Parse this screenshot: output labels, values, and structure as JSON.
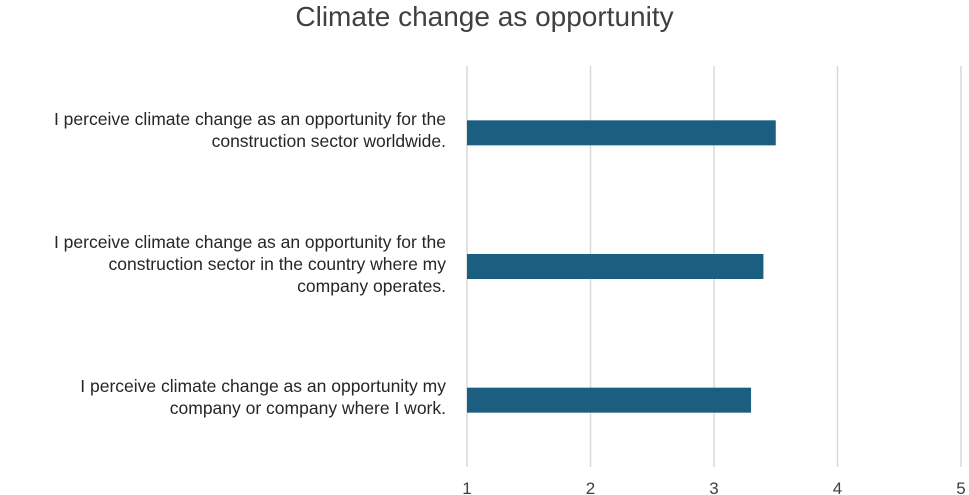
{
  "chart_data": {
    "type": "bar",
    "orientation": "horizontal",
    "title": "Climate change as opportunity",
    "xlabel": "",
    "ylabel": "",
    "categories": [
      "I perceive climate change as an opportunity for the construction sector worldwide.",
      "I perceive climate change as an opportunity for the construction sector in the country where my company operates.",
      "I perceive climate change as an opportunity my company or company where I work."
    ],
    "category_lines": [
      [
        "I perceive climate change as an opportunity for the",
        "construction sector worldwide."
      ],
      [
        "I perceive climate change as an opportunity for the",
        "construction sector in the country where my",
        "company operates."
      ],
      [
        "I perceive climate change as an opportunity my",
        "company or company where I work."
      ]
    ],
    "values": [
      3.5,
      3.4,
      3.3
    ],
    "xlim": [
      1,
      5
    ],
    "xticks": [
      1,
      2,
      3,
      4,
      5
    ],
    "grid": true,
    "bar_color": "#1b5e80",
    "grid_color": "#d9d9d9"
  }
}
